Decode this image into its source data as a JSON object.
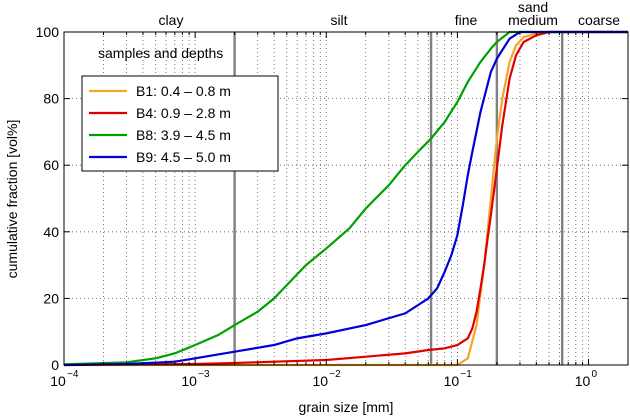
{
  "chart_data": {
    "type": "line",
    "xlabel": "grain size [mm]",
    "ylabel": "cumulative fraction [vol%]",
    "xscale": "log",
    "xlim": [
      0.0001,
      2
    ],
    "ylim": [
      0,
      100
    ],
    "grid": true,
    "x_ticks": [
      {
        "base": "10",
        "exp": "−4",
        "value": 0.0001
      },
      {
        "base": "10",
        "exp": "−3",
        "value": 0.001
      },
      {
        "base": "10",
        "exp": "−2",
        "value": 0.01
      },
      {
        "base": "10",
        "exp": "−1",
        "value": 0.1
      },
      {
        "base": "10",
        "exp": "0",
        "value": 1
      }
    ],
    "y_ticks": [
      "0",
      "20",
      "40",
      "60",
      "80",
      "100"
    ],
    "class_boundaries_mm": [
      0.002,
      0.063,
      0.2,
      0.63
    ],
    "class_labels": {
      "clay": "clay",
      "silt": "silt",
      "fine": "fine",
      "sand": "sand",
      "medium": "medium",
      "coarse": "coarse"
    },
    "legend": {
      "title": "samples and depths",
      "placement": "top-left"
    },
    "series": [
      {
        "name": "B1:  0.4 – 0.8 m",
        "color": "#f5a623",
        "points": [
          [
            0.0001,
            0
          ],
          [
            0.1,
            0
          ],
          [
            0.12,
            2
          ],
          [
            0.14,
            12
          ],
          [
            0.16,
            30
          ],
          [
            0.18,
            50
          ],
          [
            0.2,
            68
          ],
          [
            0.22,
            80
          ],
          [
            0.25,
            91
          ],
          [
            0.28,
            96
          ],
          [
            0.32,
            98.5
          ],
          [
            0.4,
            99.5
          ],
          [
            0.5,
            100
          ],
          [
            2,
            100
          ]
        ]
      },
      {
        "name": "B4:  0.9 – 2.8 m",
        "color": "#e00000",
        "points": [
          [
            0.0001,
            0
          ],
          [
            0.001,
            0.3
          ],
          [
            0.002,
            0.6
          ],
          [
            0.004,
            1
          ],
          [
            0.01,
            1.5
          ],
          [
            0.02,
            2.5
          ],
          [
            0.04,
            3.5
          ],
          [
            0.06,
            4.5
          ],
          [
            0.08,
            5
          ],
          [
            0.1,
            6
          ],
          [
            0.12,
            8
          ],
          [
            0.13,
            11
          ],
          [
            0.14,
            16
          ],
          [
            0.15,
            23
          ],
          [
            0.16,
            30
          ],
          [
            0.17,
            38
          ],
          [
            0.18,
            45
          ],
          [
            0.2,
            59
          ],
          [
            0.22,
            72
          ],
          [
            0.25,
            86
          ],
          [
            0.28,
            93
          ],
          [
            0.32,
            97
          ],
          [
            0.4,
            99
          ],
          [
            0.5,
            100
          ],
          [
            2,
            100
          ]
        ]
      },
      {
        "name": "B8:  3.9 – 4.5 m",
        "color": "#00a000",
        "points": [
          [
            0.0001,
            0.2
          ],
          [
            0.0003,
            0.8
          ],
          [
            0.0005,
            2
          ],
          [
            0.0007,
            3.5
          ],
          [
            0.001,
            6
          ],
          [
            0.0015,
            9
          ],
          [
            0.002,
            12
          ],
          [
            0.003,
            16
          ],
          [
            0.004,
            20
          ],
          [
            0.005,
            24
          ],
          [
            0.007,
            30
          ],
          [
            0.01,
            35
          ],
          [
            0.015,
            41
          ],
          [
            0.02,
            47
          ],
          [
            0.03,
            54
          ],
          [
            0.04,
            60
          ],
          [
            0.05,
            64
          ],
          [
            0.063,
            68
          ],
          [
            0.08,
            73
          ],
          [
            0.1,
            79
          ],
          [
            0.12,
            85
          ],
          [
            0.15,
            91
          ],
          [
            0.18,
            95
          ],
          [
            0.2,
            97
          ],
          [
            0.25,
            100
          ],
          [
            2,
            100
          ]
        ]
      },
      {
        "name": "B9:  4.5 – 5.0 m",
        "color": "#0000d8",
        "points": [
          [
            0.0001,
            0
          ],
          [
            0.0003,
            0.3
          ],
          [
            0.0007,
            1
          ],
          [
            0.001,
            2
          ],
          [
            0.002,
            4
          ],
          [
            0.004,
            6
          ],
          [
            0.006,
            8
          ],
          [
            0.01,
            9.5
          ],
          [
            0.02,
            12
          ],
          [
            0.04,
            15.5
          ],
          [
            0.06,
            20
          ],
          [
            0.07,
            23
          ],
          [
            0.08,
            28
          ],
          [
            0.09,
            33
          ],
          [
            0.1,
            39
          ],
          [
            0.11,
            48
          ],
          [
            0.12,
            57
          ],
          [
            0.13,
            64
          ],
          [
            0.15,
            76
          ],
          [
            0.18,
            88
          ],
          [
            0.2,
            92
          ],
          [
            0.25,
            98
          ],
          [
            0.3,
            100
          ],
          [
            2,
            100
          ]
        ]
      }
    ]
  }
}
